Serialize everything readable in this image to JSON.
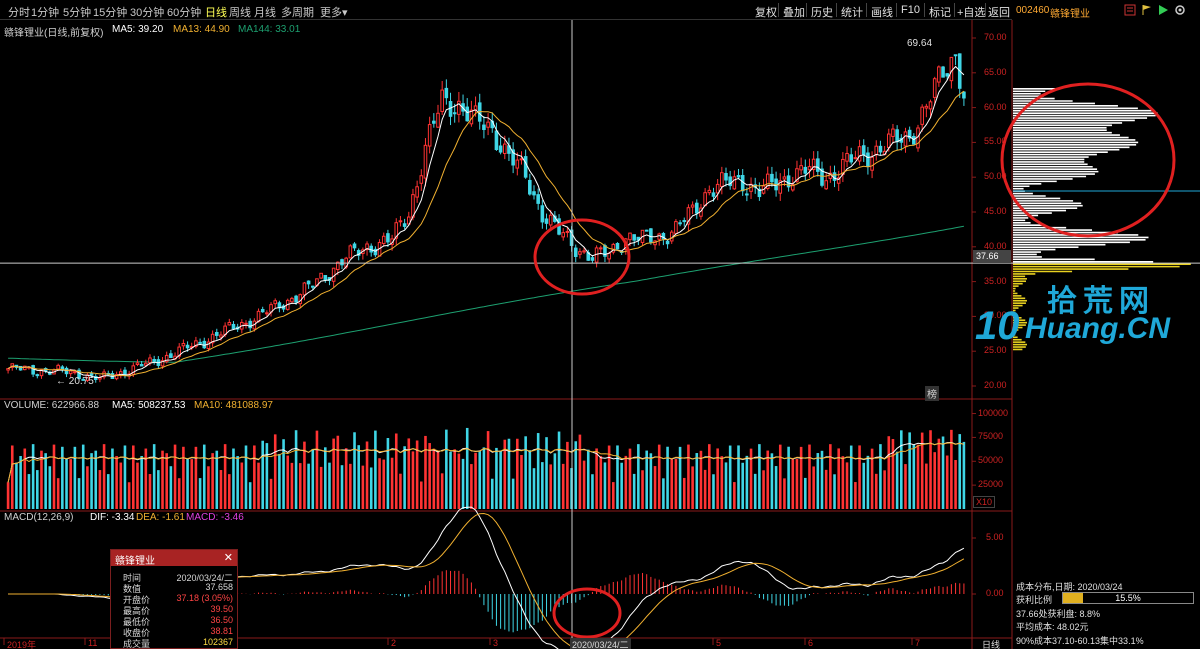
{
  "toolbar": {
    "periods": [
      "分时",
      "1分钟",
      "5分钟",
      "15分钟",
      "30分钟",
      "60分钟",
      "日线",
      "周线",
      "月线",
      "多周期",
      "更多"
    ],
    "active_period": "日线",
    "more_arrow": "▾",
    "actions": [
      "复权",
      "叠加",
      "历史",
      "统计",
      "画线",
      "F10",
      "标记",
      "+自选",
      "返回"
    ]
  },
  "ticker": {
    "code": "002460",
    "name": "赣锋锂业"
  },
  "main_chart": {
    "title": "赣锋锂业(日线,前复权)",
    "ma5_label": "MA5: 39.20",
    "ma13_label": "MA13: 44.90",
    "ma144_label": "MA144: 33.01",
    "high_label": "69.64",
    "low_label": "← 20.75",
    "crosshair_price": "37.66",
    "y_ticks": [
      "70.00",
      "65.00",
      "60.00",
      "55.00",
      "50.00",
      "45.00",
      "40.00",
      "35.00",
      "30.00",
      "25.00",
      "20.00"
    ],
    "corner_tag": "榜"
  },
  "volume_chart": {
    "title": "VOLUME: 622966.88",
    "ma5_label": "MA5: 508237.53",
    "ma10_label": "MA10: 481088.97",
    "y_ticks": [
      "100000",
      "75000",
      "50000",
      "25000"
    ],
    "unit_tag": "X10"
  },
  "macd_chart": {
    "title": "MACD(12,26,9)",
    "dif_label": "DIF: -3.34",
    "dea_label": "DEA: -1.61",
    "macd_label": "MACD: -3.46",
    "y_ticks": [
      "5.00",
      "0.00"
    ]
  },
  "x_axis": {
    "labels": [
      "2019年",
      "11",
      "12",
      "2",
      "3",
      "4",
      "5",
      "6",
      "7"
    ],
    "crosshair_date": "2020/03/24/二"
  },
  "infobox": {
    "title": "赣锋锂业",
    "close": "✕",
    "rows": [
      {
        "label": "时间",
        "value": "2020/03/24/二"
      },
      {
        "label": "数值",
        "value": "37.658"
      },
      {
        "label": "开盘价",
        "value": "37.18 (3.05%)"
      },
      {
        "label": "最高价",
        "value": "39.50"
      },
      {
        "label": "最低价",
        "value": "36.50"
      },
      {
        "label": "收盘价",
        "value": "38.81"
      },
      {
        "label": "成交量",
        "value": "102367"
      }
    ]
  },
  "cost_panel": {
    "title": "成本分布,日期: 2020/03/24",
    "profit_label": "获利比例",
    "profit_value": "15.5%",
    "profit_fraction": 0.155,
    "profit_plate": "37.66处获利盘: 8.8%",
    "avg_cost": "平均成本: 48.02元",
    "cost_90": "90%成本37.10-60.13集中33.1%",
    "footer_tag": "日线"
  },
  "watermark": {
    "cn": "拾荒网",
    "en": "Huang.CN",
    "logo_digits": "10"
  },
  "colors": {
    "up": "#ff3333",
    "down": "#3fd6e6",
    "ma5": "#ffffff",
    "ma13": "#f0b030",
    "ma144": "#1da070",
    "circle": "#e02020"
  }
}
